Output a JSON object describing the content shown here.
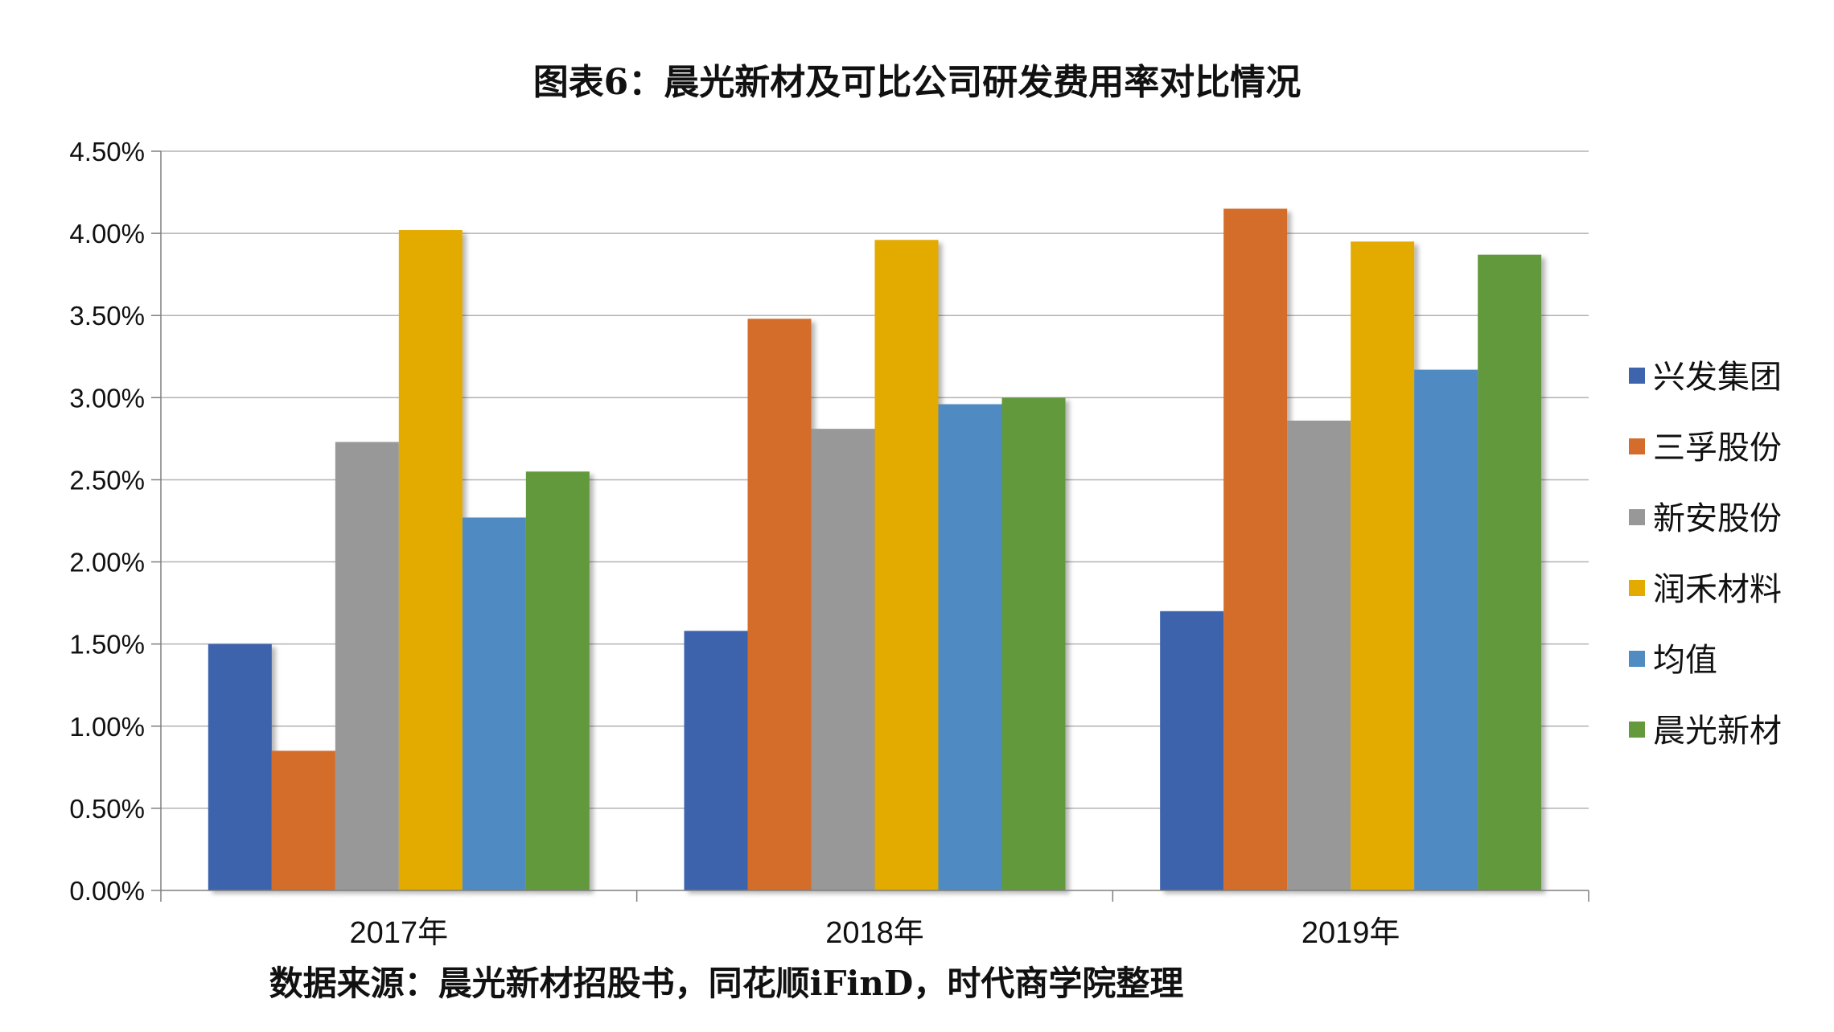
{
  "chart_data": {
    "type": "bar",
    "title": "图表6：晨光新材及可比公司研发费用率对比情况",
    "source": "数据来源：晨光新材招股书，同花顺iFinD，时代商学院整理",
    "categories": [
      "2017年",
      "2018年",
      "2019年"
    ],
    "series": [
      {
        "name": "兴发集团",
        "color": "#3D64AD",
        "values": [
          1.5,
          1.58,
          1.7
        ]
      },
      {
        "name": "三孚股份",
        "color": "#D46D2B",
        "values": [
          0.85,
          3.48,
          4.15
        ]
      },
      {
        "name": "新安股份",
        "color": "#989898",
        "values": [
          2.73,
          2.81,
          2.86
        ]
      },
      {
        "name": "润禾材料",
        "color": "#E3AA00",
        "values": [
          4.02,
          3.96,
          3.95
        ]
      },
      {
        "name": "均值",
        "color": "#508BC2",
        "values": [
          2.27,
          2.96,
          3.17
        ]
      },
      {
        "name": "晨光新材",
        "color": "#64993C",
        "values": [
          2.55,
          3.0,
          3.87
        ]
      }
    ],
    "ylim": [
      0,
      4.5
    ],
    "yticks": [
      "0.00%",
      "0.50%",
      "1.00%",
      "1.50%",
      "2.00%",
      "2.50%",
      "3.00%",
      "3.50%",
      "4.00%",
      "4.50%"
    ],
    "ytick_values": [
      0,
      0.5,
      1.0,
      1.5,
      2.0,
      2.5,
      3.0,
      3.5,
      4.0,
      4.5
    ],
    "grid": true,
    "legend_position": "right",
    "xlabel": "",
    "ylabel": ""
  }
}
